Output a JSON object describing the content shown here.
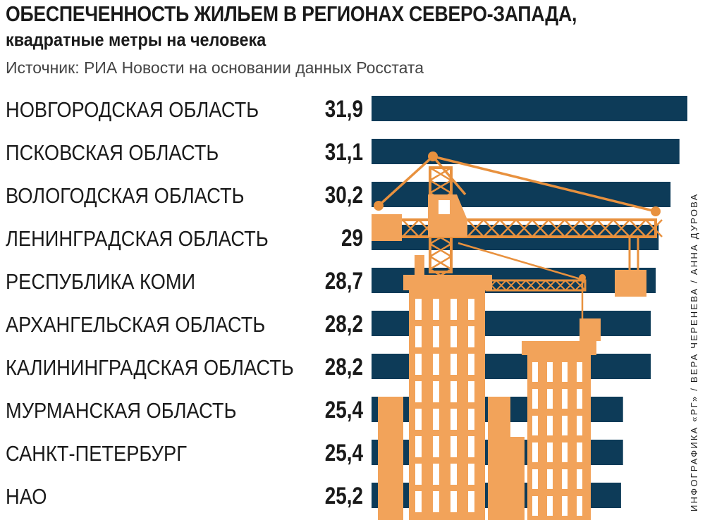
{
  "header": {
    "title": "ОБЕСПЕЧЕННОСТЬ ЖИЛЬЕМ В РЕГИОНАХ СЕВЕРО-ЗАПАДА,",
    "subtitle": "квадратные метры на человека",
    "source": "Источник: РИА Новости на основании данных Росстата",
    "credit": "ИНФОГРАФИКА «РГ» / ВЕРА ЧЕРЕНЕВА / АННА ДУРОВА"
  },
  "colors": {
    "bar": "#0d3b58",
    "building": "#f2a35a",
    "building_stroke": "#e8913e",
    "text": "#1a1a1a"
  },
  "chart_data": {
    "type": "bar",
    "orientation": "horizontal",
    "categories": [
      "НОВГОРОДСКАЯ ОБЛАСТЬ",
      "ПСКОВСКАЯ ОБЛАСТЬ",
      "ВОЛОГОДСКАЯ ОБЛАСТЬ",
      "ЛЕНИНГРАДСКАЯ ОБЛАСТЬ",
      "РЕСПУБЛИКА КОМИ",
      "АРХАНГЕЛЬСКАЯ ОБЛАСТЬ",
      "КАЛИНИНГРАДСКАЯ ОБЛАСТЬ",
      "МУРМАНСКАЯ ОБЛАСТЬ",
      "САНКТ-ПЕТЕРБУРГ",
      "НАО"
    ],
    "values": [
      31.9,
      31.1,
      30.2,
      29,
      28.7,
      28.2,
      28.2,
      25.4,
      25.4,
      25.2
    ],
    "value_labels": [
      "31,9",
      "31,1",
      "30,2",
      "29",
      "28,7",
      "28,2",
      "28,2",
      "25,4",
      "25,4",
      "25,2"
    ],
    "xlim": [
      0,
      31.9
    ],
    "grid": false,
    "legend": "none"
  }
}
